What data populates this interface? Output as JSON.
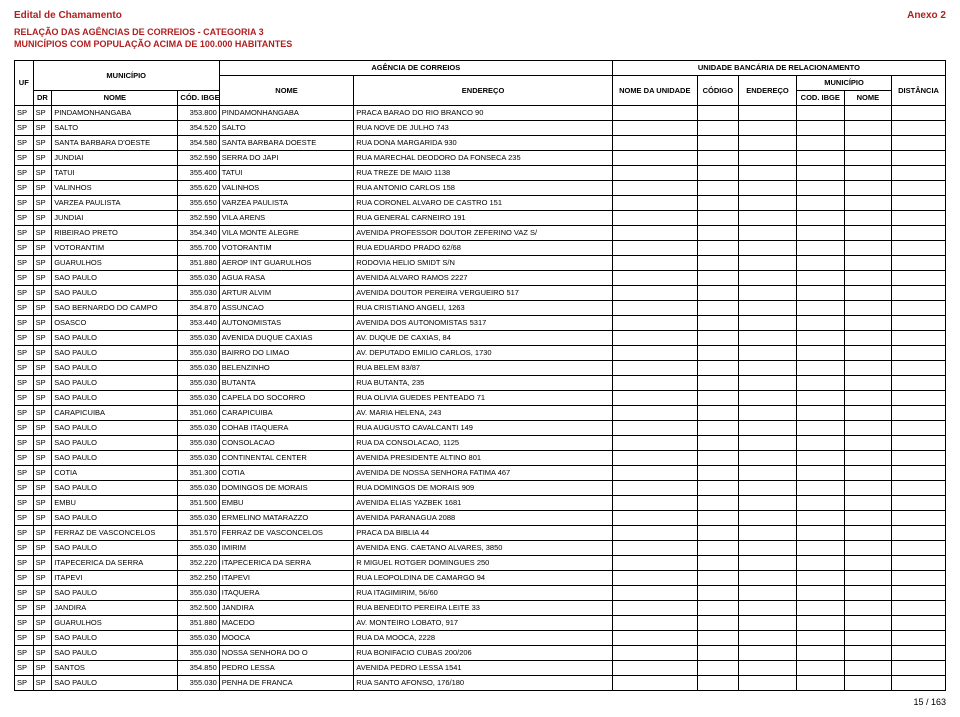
{
  "header": {
    "title": "Edital de Chamamento",
    "annex": "Anexo 2",
    "line1": "RELAÇÃO DAS AGÊNCIAS DE CORREIOS - CATEGORIA 3",
    "line2": "MUNICÍPIOS COM POPULAÇÃO ACIMA DE 100.000 HABITANTES"
  },
  "columns": {
    "agencia": "AGÊNCIA DE CORREIOS",
    "ubr": "UNIDADE BANCÁRIA DE RELACIONAMENTO",
    "uf": "UF",
    "municipio": "MUNICÍPIO",
    "dr": "DR",
    "nome_m": "NOME",
    "cod_ibge": "CÓD. IBGE",
    "nome_ag": "NOME",
    "endereco": "ENDEREÇO",
    "nome_unidade": "NOME DA UNIDADE",
    "codigo": "CÓDIGO",
    "endereco2": "ENDEREÇO",
    "municipio2": "MUNICÍPIO",
    "cod_ibge2": "COD. IBGE",
    "nome2": "NOME",
    "distancia": "DISTÂNCIA"
  },
  "rows": [
    [
      "SP",
      "SP",
      "PINDAMONHANGABA",
      "353.800",
      "PINDAMONHANGABA",
      "PRACA BARAO DO RIO BRANCO 90"
    ],
    [
      "SP",
      "SP",
      "SALTO",
      "354.520",
      "SALTO",
      "RUA NOVE DE JULHO 743"
    ],
    [
      "SP",
      "SP",
      "SANTA BARBARA D'OESTE",
      "354.580",
      "SANTA BARBARA DOESTE",
      "RUA DONA MARGARIDA 930"
    ],
    [
      "SP",
      "SP",
      "JUNDIAI",
      "352.590",
      "SERRA DO JAPI",
      "RUA MARECHAL DEODORO DA FONSECA 235"
    ],
    [
      "SP",
      "SP",
      "TATUI",
      "355.400",
      "TATUI",
      "RUA TREZE DE MAIO 1138"
    ],
    [
      "SP",
      "SP",
      "VALINHOS",
      "355.620",
      "VALINHOS",
      "RUA ANTONIO CARLOS 158"
    ],
    [
      "SP",
      "SP",
      "VARZEA PAULISTA",
      "355.650",
      "VARZEA PAULISTA",
      "RUA CORONEL ALVARO DE CASTRO 151"
    ],
    [
      "SP",
      "SP",
      "JUNDIAI",
      "352.590",
      "VILA ARENS",
      "RUA GENERAL CARNEIRO 191"
    ],
    [
      "SP",
      "SP",
      "RIBEIRAO PRETO",
      "354.340",
      "VILA MONTE ALEGRE",
      "AVENIDA PROFESSOR DOUTOR ZEFERINO VAZ S/"
    ],
    [
      "SP",
      "SP",
      "VOTORANTIM",
      "355.700",
      "VOTORANTIM",
      "RUA EDUARDO PRADO 62/68"
    ],
    [
      "SP",
      "SP",
      "GUARULHOS",
      "351.880",
      "AEROP INT GUARULHOS",
      "RODOVIA HELIO SMIDT S/N"
    ],
    [
      "SP",
      "SP",
      "SAO PAULO",
      "355.030",
      "AGUA RASA",
      "AVENIDA ALVARO RAMOS 2227"
    ],
    [
      "SP",
      "SP",
      "SAO PAULO",
      "355.030",
      "ARTUR ALVIM",
      "AVENIDA DOUTOR PEREIRA VERGUEIRO 517"
    ],
    [
      "SP",
      "SP",
      "SAO BERNARDO DO CAMPO",
      "354.870",
      "ASSUNCAO",
      "RUA CRISTIANO ANGELI, 1263"
    ],
    [
      "SP",
      "SP",
      "OSASCO",
      "353.440",
      "AUTONOMISTAS",
      "AVENIDA DOS AUTONOMISTAS 5317"
    ],
    [
      "SP",
      "SP",
      "SAO PAULO",
      "355.030",
      "AVENIDA DUQUE CAXIAS",
      "AV. DUQUE DE CAXIAS, 84"
    ],
    [
      "SP",
      "SP",
      "SAO PAULO",
      "355.030",
      "BAIRRO DO LIMAO",
      "AV. DEPUTADO EMILIO CARLOS, 1730"
    ],
    [
      "SP",
      "SP",
      "SAO PAULO",
      "355.030",
      "BELENZINHO",
      "RUA BELEM 83/87"
    ],
    [
      "SP",
      "SP",
      "SAO PAULO",
      "355.030",
      "BUTANTA",
      "RUA BUTANTA, 235"
    ],
    [
      "SP",
      "SP",
      "SAO PAULO",
      "355.030",
      "CAPELA DO SOCORRO",
      "RUA OLIVIA GUEDES PENTEADO 71"
    ],
    [
      "SP",
      "SP",
      "CARAPICUIBA",
      "351.060",
      "CARAPICUIBA",
      "AV. MARIA HELENA, 243"
    ],
    [
      "SP",
      "SP",
      "SAO PAULO",
      "355.030",
      "COHAB ITAQUERA",
      "RUA AUGUSTO CAVALCANTI 149"
    ],
    [
      "SP",
      "SP",
      "SAO PAULO",
      "355.030",
      "CONSOLACAO",
      "RUA DA CONSOLACAO, 1125"
    ],
    [
      "SP",
      "SP",
      "SAO PAULO",
      "355.030",
      "CONTINENTAL CENTER",
      "AVENIDA PRESIDENTE ALTINO 801"
    ],
    [
      "SP",
      "SP",
      "COTIA",
      "351.300",
      "COTIA",
      "AVENIDA DE NOSSA SENHORA FATIMA 467"
    ],
    [
      "SP",
      "SP",
      "SAO PAULO",
      "355.030",
      "DOMINGOS DE MORAIS",
      "RUA DOMINGOS DE MORAIS 909"
    ],
    [
      "SP",
      "SP",
      "EMBU",
      "351.500",
      "EMBU",
      "AVENIDA ELIAS YAZBEK 1681"
    ],
    [
      "SP",
      "SP",
      "SAO PAULO",
      "355.030",
      "ERMELINO MATARAZZO",
      "AVENIDA PARANAGUA 2088"
    ],
    [
      "SP",
      "SP",
      "FERRAZ DE VASCONCELOS",
      "351.570",
      "FERRAZ DE VASCONCELOS",
      "PRACA DA BIBLIA 44"
    ],
    [
      "SP",
      "SP",
      "SAO PAULO",
      "355.030",
      "IMIRIM",
      "AVENIDA ENG. CAETANO ALVARES, 3850"
    ],
    [
      "SP",
      "SP",
      "ITAPECERICA DA SERRA",
      "352.220",
      "ITAPECERICA DA SERRA",
      "R MIGUEL ROTGER DOMINGUES 250"
    ],
    [
      "SP",
      "SP",
      "ITAPEVI",
      "352.250",
      "ITAPEVI",
      "RUA LEOPOLDINA DE CAMARGO 94"
    ],
    [
      "SP",
      "SP",
      "SAO PAULO",
      "355.030",
      "ITAQUERA",
      "RUA ITAGIMIRIM, 56/60"
    ],
    [
      "SP",
      "SP",
      "JANDIRA",
      "352.500",
      "JANDIRA",
      "RUA BENEDITO PEREIRA LEITE 33"
    ],
    [
      "SP",
      "SP",
      "GUARULHOS",
      "351.880",
      "MACEDO",
      "AV. MONTEIRO LOBATO, 917"
    ],
    [
      "SP",
      "SP",
      "SAO PAULO",
      "355.030",
      "MOOCA",
      "RUA DA MOOCA, 2228"
    ],
    [
      "SP",
      "SP",
      "SAO PAULO",
      "355.030",
      "NOSSA SENHORA DO O",
      "RUA BONIFACIO CUBAS 200/206"
    ],
    [
      "SP",
      "SP",
      "SANTOS",
      "354.850",
      "PEDRO LESSA",
      "AVENIDA PEDRO LESSA 1541"
    ],
    [
      "SP",
      "SP",
      "SAO PAULO",
      "355.030",
      "PENHA DE FRANCA",
      "RUA SANTO AFONSO, 176/180"
    ]
  ],
  "footer": {
    "page": "15 / 163"
  }
}
